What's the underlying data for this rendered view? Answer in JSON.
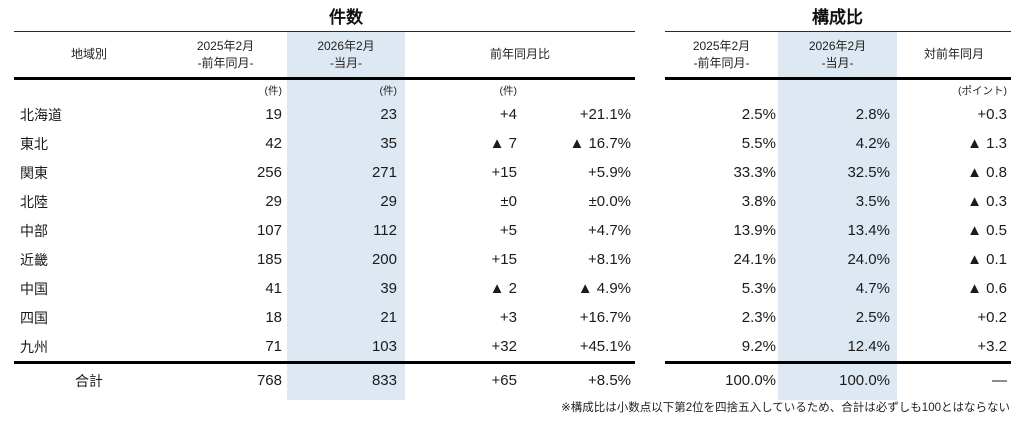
{
  "left_table": {
    "title": "件数",
    "region_header": "地域別",
    "col_prev": {
      "line1": "2025年2月",
      "line2": "-前年同月-",
      "unit": "(件)"
    },
    "col_curr": {
      "line1": "2026年2月",
      "line2": "-当月-",
      "unit": "(件)"
    },
    "col_yoy": {
      "label": "前年同月比",
      "unit": "(件)"
    },
    "rows": [
      {
        "region": "北海道",
        "prev": "19",
        "curr": "23",
        "diff": "+4",
        "pct": "+21.1%"
      },
      {
        "region": "東北",
        "prev": "42",
        "curr": "35",
        "diff": "▲ 7",
        "pct": "▲ 16.7%"
      },
      {
        "region": "関東",
        "prev": "256",
        "curr": "271",
        "diff": "+15",
        "pct": "+5.9%"
      },
      {
        "region": "北陸",
        "prev": "29",
        "curr": "29",
        "diff": "±0",
        "pct": "±0.0%"
      },
      {
        "region": "中部",
        "prev": "107",
        "curr": "112",
        "diff": "+5",
        "pct": "+4.7%"
      },
      {
        "region": "近畿",
        "prev": "185",
        "curr": "200",
        "diff": "+15",
        "pct": "+8.1%"
      },
      {
        "region": "中国",
        "prev": "41",
        "curr": "39",
        "diff": "▲ 2",
        "pct": "▲ 4.9%"
      },
      {
        "region": "四国",
        "prev": "18",
        "curr": "21",
        "diff": "+3",
        "pct": "+16.7%"
      },
      {
        "region": "九州",
        "prev": "71",
        "curr": "103",
        "diff": "+32",
        "pct": "+45.1%"
      }
    ],
    "total": {
      "label": "合計",
      "prev": "768",
      "curr": "833",
      "diff": "+65",
      "pct": "+8.5%"
    }
  },
  "right_table": {
    "title": "構成比",
    "col_prev": {
      "line1": "2025年2月",
      "line2": "-前年同月-"
    },
    "col_curr": {
      "line1": "2026年2月",
      "line2": "-当月-"
    },
    "col_yoy": {
      "label": "対前年同月",
      "unit": "(ポイント)"
    },
    "rows": [
      {
        "prev": "2.5%",
        "curr": "2.8%",
        "pt": "+0.3"
      },
      {
        "prev": "5.5%",
        "curr": "4.2%",
        "pt": "▲ 1.3"
      },
      {
        "prev": "33.3%",
        "curr": "32.5%",
        "pt": "▲ 0.8"
      },
      {
        "prev": "3.8%",
        "curr": "3.5%",
        "pt": "▲ 0.3"
      },
      {
        "prev": "13.9%",
        "curr": "13.4%",
        "pt": "▲ 0.5"
      },
      {
        "prev": "24.1%",
        "curr": "24.0%",
        "pt": "▲ 0.1"
      },
      {
        "prev": "5.3%",
        "curr": "4.7%",
        "pt": "▲ 0.6"
      },
      {
        "prev": "2.3%",
        "curr": "2.5%",
        "pt": "+0.2"
      },
      {
        "prev": "9.2%",
        "curr": "12.4%",
        "pt": "+3.2"
      }
    ],
    "total": {
      "prev": "100.0%",
      "curr": "100.0%",
      "pt": "—"
    }
  },
  "footnote": "※構成比は小数点以下第2位を四捨五入しているため、合計は必ずしも100とはならない",
  "colors": {
    "highlight": "#dde8f3",
    "text": "#1b1b1b",
    "rule": "#000000"
  },
  "chart_data": {
    "type": "table",
    "title": "件数・構成比（地域別）",
    "sections": [
      "件数",
      "構成比"
    ],
    "columns": [
      "地域別",
      "件数 2025年2月(前年同月) (件)",
      "件数 2026年2月(当月) (件)",
      "前年同月比 (件)",
      "前年同月比 (%)",
      "構成比 2025年2月(前年同月)",
      "構成比 2026年2月(当月)",
      "対前年同月 (ポイント)"
    ],
    "rows": [
      [
        "北海道",
        19,
        23,
        "+4",
        "+21.1%",
        "2.5%",
        "2.8%",
        "+0.3"
      ],
      [
        "東北",
        42,
        35,
        "▲ 7",
        "▲ 16.7%",
        "5.5%",
        "4.2%",
        "▲ 1.3"
      ],
      [
        "関東",
        256,
        271,
        "+15",
        "+5.9%",
        "33.3%",
        "32.5%",
        "▲ 0.8"
      ],
      [
        "北陸",
        29,
        29,
        "±0",
        "±0.0%",
        "3.8%",
        "3.5%",
        "▲ 0.3"
      ],
      [
        "中部",
        107,
        112,
        "+5",
        "+4.7%",
        "13.9%",
        "13.4%",
        "▲ 0.5"
      ],
      [
        "近畿",
        185,
        200,
        "+15",
        "+8.1%",
        "24.1%",
        "24.0%",
        "▲ 0.1"
      ],
      [
        "中国",
        41,
        39,
        "▲ 2",
        "▲ 4.9%",
        "5.3%",
        "4.7%",
        "▲ 0.6"
      ],
      [
        "四国",
        18,
        21,
        "+3",
        "+16.7%",
        "2.3%",
        "2.5%",
        "+0.2"
      ],
      [
        "九州",
        71,
        103,
        "+32",
        "+45.1%",
        "9.2%",
        "12.4%",
        "+3.2"
      ],
      [
        "合計",
        768,
        833,
        "+65",
        "+8.5%",
        "100.0%",
        "100.0%",
        "—"
      ]
    ],
    "notes": "※構成比は小数点以下第2位を四捨五入しているため、合計は必ずしも100とはならない",
    "layout": {
      "highlighted_columns": [
        "2026年2月(当月)"
      ],
      "highlight_color": "#dde8f3"
    }
  }
}
